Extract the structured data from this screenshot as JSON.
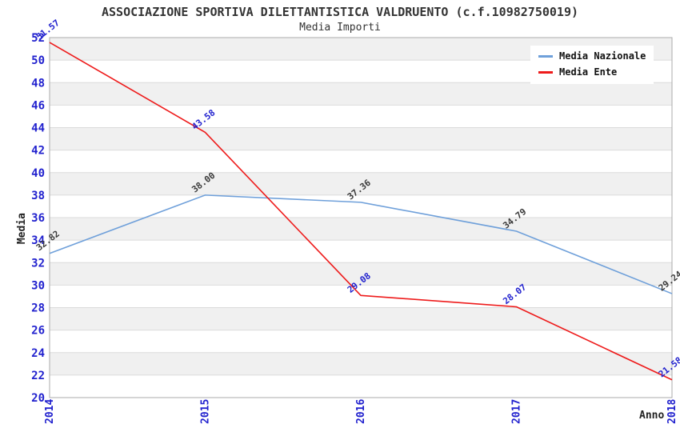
{
  "chart_data": {
    "type": "line",
    "title": "ASSOCIAZIONE SPORTIVA DILETTANTISTICA VALDRUENTO (c.f.10982750019)",
    "subtitle": "Media Importi",
    "xlabel": "Anno",
    "ylabel": "Media",
    "categories": [
      "2014",
      "2015",
      "2016",
      "2017",
      "2018"
    ],
    "series": [
      {
        "name": "Media Nazionale",
        "color": "#6FA0DA",
        "label_color": "#3A3A3A",
        "values": [
          32.82,
          38.0,
          37.36,
          34.79,
          29.24
        ]
      },
      {
        "name": "Media Ente",
        "color": "#EE1B1B",
        "label_color": "#2121CE",
        "values": [
          51.57,
          43.58,
          29.08,
          28.07,
          21.58
        ]
      }
    ],
    "ylim": [
      20,
      52
    ],
    "ytick_step": 2,
    "grid": true,
    "legend_position": "top-right",
    "value_label_decimals": 2,
    "colors": {
      "band_fill": "#F0F0F0",
      "band_alt_fill": "#FFFFFF",
      "grid_color": "#DBDBDB",
      "border_color": "#ABABAB",
      "tick_color": "#2121CE",
      "title_color": "#333333",
      "background": "#FFFFFF"
    }
  }
}
